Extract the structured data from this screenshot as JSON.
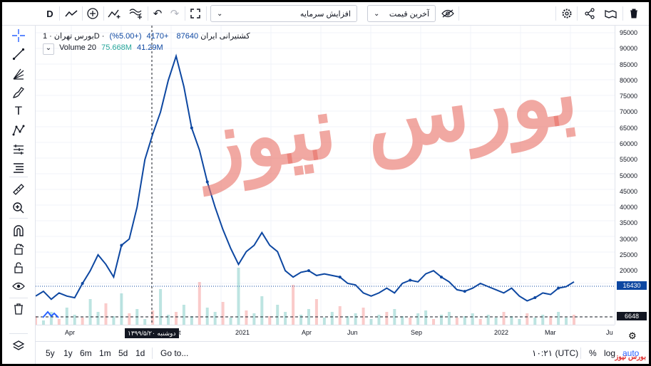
{
  "toolbar": {
    "interval": "D",
    "select1": "افزایش سرمایه",
    "select2": "آخرین قیمت"
  },
  "symbol": {
    "name": "بورس تهران · 1D · کشتیرانی ایران",
    "price": "87640",
    "change": "+4170",
    "change_pct": "(+5.00%)"
  },
  "volume": {
    "label": "Volume 20",
    "v1": "75.668M",
    "v2": "41.29M"
  },
  "price_axis": [
    "95000",
    "90000",
    "85000",
    "80000",
    "75000",
    "70000",
    "65000",
    "60000",
    "55000",
    "50000",
    "45000",
    "40000",
    "35000",
    "30000",
    "25000",
    "20000",
    "15000"
  ],
  "price_tags": {
    "last": "16430",
    "volume": "6648"
  },
  "time_axis": [
    "Apr",
    "2021",
    "Apr",
    "Jun",
    "Sep",
    "2022",
    "Mar",
    "Ju"
  ],
  "crosshair_date": "دوشنبه ۱۳۹۹/۵/۲۰",
  "crosshair_suffix": "t",
  "bottom": {
    "ranges": [
      "5y",
      "1y",
      "6m",
      "1m",
      "5d",
      "1d"
    ],
    "goto": "Go to...",
    "clock": "۱۰:۲۱ (UTC)",
    "percent": "%",
    "log": "log",
    "auto": "auto"
  },
  "watermark": "بورس نیوز",
  "corner_logo": "بورس نیوز",
  "colors": {
    "line": "#0d47a1",
    "up": "#26a69a",
    "down": "#ef5350",
    "watermark": "#e86e64"
  },
  "chart_data": {
    "type": "line",
    "series": [
      {
        "values": [
          12000,
          13500,
          11000,
          13000,
          12000,
          11500,
          16000,
          20000,
          25000,
          22000,
          18000,
          28000,
          30000,
          40000,
          55000,
          63000,
          70000,
          80000,
          87640,
          78000,
          65000,
          58000,
          48000,
          40000,
          33000,
          27000,
          22000,
          26000,
          28000,
          32000,
          28000,
          26000,
          20000,
          18000,
          19500,
          20000,
          18500,
          19000,
          18500,
          18000,
          16000,
          15500,
          13000,
          12000,
          13000,
          14500,
          13000,
          16000,
          17000,
          16500,
          19000,
          20000,
          18000,
          16500,
          14000,
          13500,
          14500,
          16000,
          15000,
          14000,
          13000,
          14500,
          12000,
          10500,
          11500,
          13000,
          12500,
          14500,
          15000,
          16500
        ]
      }
    ],
    "ylim": [
      8000,
      95000
    ],
    "volume": [
      6,
      3,
      9,
      4,
      12,
      7,
      5,
      18,
      9,
      15,
      6,
      22,
      8,
      11,
      4,
      10,
      25,
      7,
      9,
      14,
      6,
      30,
      12,
      9,
      16,
      5,
      40,
      10,
      8,
      20,
      6,
      14,
      9,
      28,
      7,
      11,
      18,
      5,
      9,
      13,
      6,
      8,
      12,
      4,
      7,
      9,
      11,
      6,
      5,
      8,
      10,
      4,
      7,
      9,
      5,
      6,
      8,
      4,
      7,
      5,
      9,
      6,
      4,
      8,
      5,
      7,
      6,
      9,
      5,
      7
    ]
  }
}
